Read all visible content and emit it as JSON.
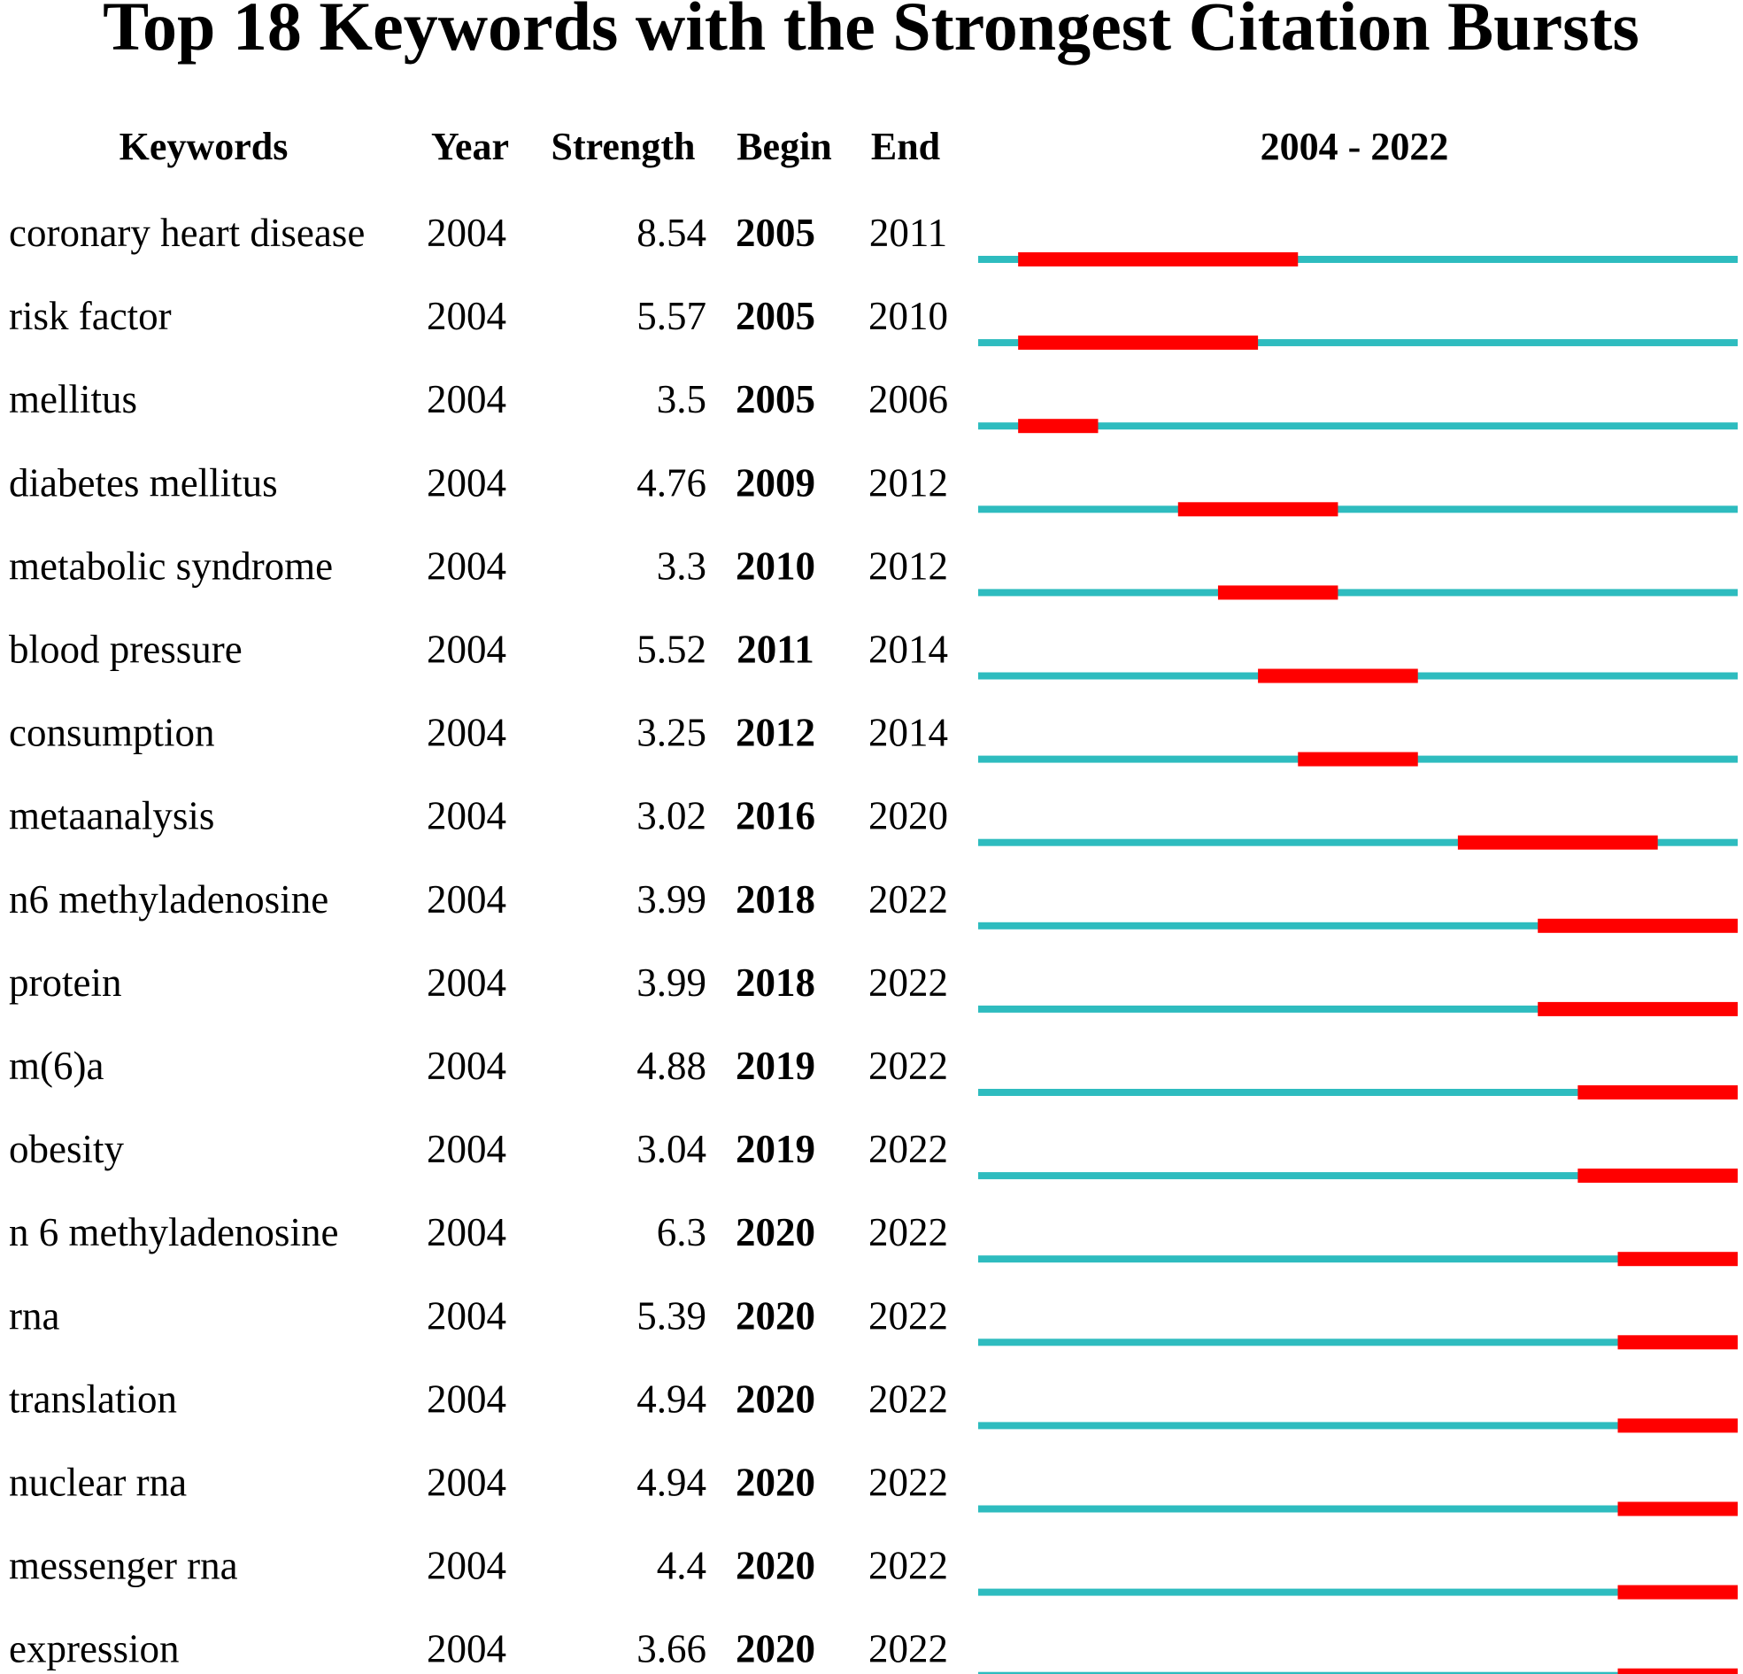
{
  "chart_data": {
    "type": "table",
    "title": "Top 18 Keywords with the Strongest Citation Bursts",
    "columns": [
      "Keywords",
      "Year",
      "Strength",
      "Begin",
      "End",
      "2004 - 2022"
    ],
    "timeline_range": [
      2004,
      2022
    ],
    "colors": {
      "baseline": "#2ebcbf",
      "burst": "#ff0000"
    },
    "rows": [
      {
        "keyword": "coronary heart disease",
        "year": "2004",
        "strength": "8.54",
        "begin": "2005",
        "end": "2011"
      },
      {
        "keyword": "risk factor",
        "year": "2004",
        "strength": "5.57",
        "begin": "2005",
        "end": "2010"
      },
      {
        "keyword": "mellitus",
        "year": "2004",
        "strength": "3.5",
        "begin": "2005",
        "end": "2006"
      },
      {
        "keyword": "diabetes mellitus",
        "year": "2004",
        "strength": "4.76",
        "begin": "2009",
        "end": "2012"
      },
      {
        "keyword": "metabolic syndrome",
        "year": "2004",
        "strength": "3.3",
        "begin": "2010",
        "end": "2012"
      },
      {
        "keyword": "blood pressure",
        "year": "2004",
        "strength": "5.52",
        "begin": "2011",
        "end": "2014"
      },
      {
        "keyword": "consumption",
        "year": "2004",
        "strength": "3.25",
        "begin": "2012",
        "end": "2014"
      },
      {
        "keyword": "metaanalysis",
        "year": "2004",
        "strength": "3.02",
        "begin": "2016",
        "end": "2020"
      },
      {
        "keyword": "n6 methyladenosine",
        "year": "2004",
        "strength": "3.99",
        "begin": "2018",
        "end": "2022"
      },
      {
        "keyword": "protein",
        "year": "2004",
        "strength": "3.99",
        "begin": "2018",
        "end": "2022"
      },
      {
        "keyword": "m(6)a",
        "year": "2004",
        "strength": "4.88",
        "begin": "2019",
        "end": "2022"
      },
      {
        "keyword": "obesity",
        "year": "2004",
        "strength": "3.04",
        "begin": "2019",
        "end": "2022"
      },
      {
        "keyword": "n 6 methyladenosine",
        "year": "2004",
        "strength": "6.3",
        "begin": "2020",
        "end": "2022"
      },
      {
        "keyword": "rna",
        "year": "2004",
        "strength": "5.39",
        "begin": "2020",
        "end": "2022"
      },
      {
        "keyword": "translation",
        "year": "2004",
        "strength": "4.94",
        "begin": "2020",
        "end": "2022"
      },
      {
        "keyword": "nuclear rna",
        "year": "2004",
        "strength": "4.94",
        "begin": "2020",
        "end": "2022"
      },
      {
        "keyword": "messenger rna",
        "year": "2004",
        "strength": "4.4",
        "begin": "2020",
        "end": "2022"
      },
      {
        "keyword": "expression",
        "year": "2004",
        "strength": "3.66",
        "begin": "2020",
        "end": "2022"
      }
    ]
  }
}
